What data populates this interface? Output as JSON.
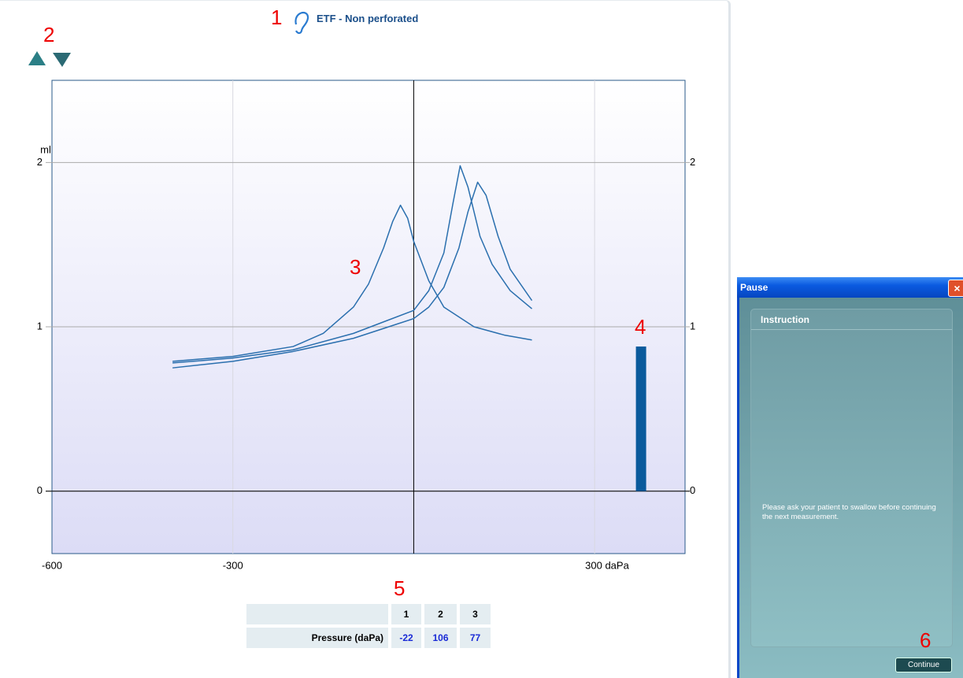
{
  "header": {
    "title": "ETF - Non perforated"
  },
  "annotations": [
    "1",
    "2",
    "3",
    "4",
    "5",
    "6"
  ],
  "chart_data": {
    "type": "line",
    "y_label": "ml",
    "xlim": [
      -600,
      450
    ],
    "xticks": [
      -600,
      -300,
      {
        "value": 300,
        "label": "300 daPa"
      }
    ],
    "ylim": [
      -0.38,
      2.5
    ],
    "yticks": [
      0,
      1,
      2
    ],
    "grid": true,
    "series": [
      {
        "color": "#2a6fae",
        "x": [
          -400,
          -300,
          -200,
          -150,
          -100,
          -75,
          -50,
          -35,
          -22,
          -10,
          0,
          25,
          50,
          100,
          150,
          196
        ],
        "values": [
          0.79,
          0.82,
          0.88,
          0.96,
          1.12,
          1.26,
          1.48,
          1.64,
          1.74,
          1.66,
          1.52,
          1.28,
          1.12,
          1.0,
          0.95,
          0.92
        ]
      },
      {
        "color": "#2a6fae",
        "x": [
          -400,
          -300,
          -200,
          -100,
          -50,
          0,
          25,
          50,
          75,
          90,
          106,
          120,
          140,
          160,
          196
        ],
        "values": [
          0.75,
          0.79,
          0.85,
          0.93,
          0.99,
          1.05,
          1.12,
          1.24,
          1.48,
          1.7,
          1.88,
          1.8,
          1.55,
          1.35,
          1.16
        ]
      },
      {
        "color": "#2a6fae",
        "x": [
          -400,
          -300,
          -200,
          -100,
          -50,
          0,
          25,
          50,
          65,
          77,
          90,
          110,
          130,
          160,
          196
        ],
        "values": [
          0.78,
          0.81,
          0.86,
          0.96,
          1.03,
          1.1,
          1.22,
          1.45,
          1.75,
          1.98,
          1.85,
          1.55,
          1.38,
          1.22,
          1.11
        ]
      }
    ],
    "bar": {
      "x": 377,
      "value": 0.88,
      "color": "#0a5a9c"
    }
  },
  "table": {
    "headers": [
      "1",
      "2",
      "3"
    ],
    "rows": [
      [
        "Pressure (daPa)",
        -22,
        106,
        77
      ]
    ]
  },
  "dialog": {
    "title": "Pause",
    "section": "Instruction",
    "message": "Please ask your patient to swallow before continuing the next measurement.",
    "button": "Continue"
  }
}
